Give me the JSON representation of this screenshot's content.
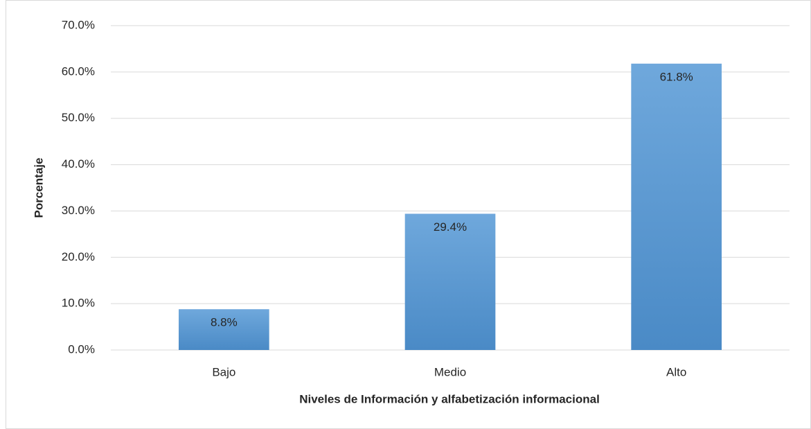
{
  "chart_data": {
    "type": "bar",
    "x_label": "Niveles de Información y alfabetización informacional",
    "y_label": "Porcentaje",
    "categories": [
      "Bajo",
      "Medio",
      "Alto"
    ],
    "values": [
      8.8,
      29.4,
      61.8
    ],
    "value_labels": [
      "8.8%",
      "29.4%",
      "61.8%"
    ],
    "color": "#5b9bd5",
    "ylim": [
      0,
      70
    ],
    "yticks": [
      {
        "value": 0,
        "label": "0.0%"
      },
      {
        "value": 10,
        "label": "10.0%"
      },
      {
        "value": 20,
        "label": "20.0%"
      },
      {
        "value": 30,
        "label": "30.0%"
      },
      {
        "value": 40,
        "label": "40.0%"
      },
      {
        "value": 50,
        "label": "50.0%"
      },
      {
        "value": 60,
        "label": "60.0%"
      },
      {
        "value": 70,
        "label": "70.0%"
      }
    ],
    "grid": true
  }
}
